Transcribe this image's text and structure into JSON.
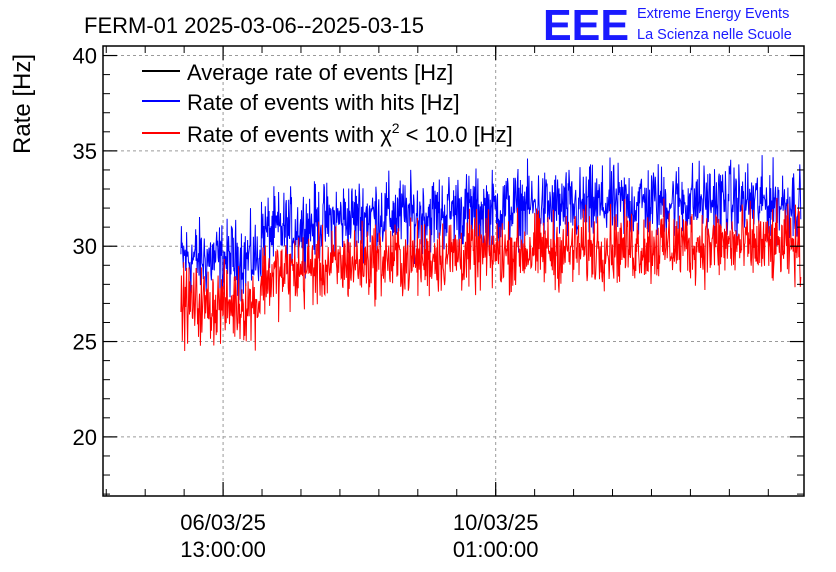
{
  "header": {
    "title": "FERM-01 2025-03-06--2025-03-15",
    "logo_text": "EEE",
    "logo_line1": "Extreme Energy Events",
    "logo_line2": "La Scienza nelle Scuole"
  },
  "chart_data": {
    "type": "line",
    "title": "FERM-01 2025-03-06--2025-03-15",
    "xlabel": "",
    "ylabel": "Rate [Hz]",
    "ylim": [
      16.9,
      40.5
    ],
    "xlim": [
      "2025-03-05T00:00:00",
      "2025-03-14T00:00:00"
    ],
    "yticks": [
      20,
      25,
      30,
      35,
      40
    ],
    "xticks": [
      {
        "x": "2025-03-06T13:00:00",
        "line1": "06/03/25",
        "line2": "13:00:00"
      },
      {
        "x": "2025-03-10T01:00:00",
        "line1": "10/03/25",
        "line2": "01:00:00"
      }
    ],
    "grid": true,
    "legend_position": "top-left",
    "legend": [
      {
        "label": "Average rate of events [Hz]",
        "color": "#000000"
      },
      {
        "label": "Rate of events with hits [Hz]",
        "color": "#0000ff"
      },
      {
        "label_prefix": "Rate of events with χ",
        "label_sup": "2",
        "label_suffix": " < 10.0 [Hz]",
        "color": "#ff0000"
      }
    ],
    "series": [
      {
        "name": "Rate of events with hits [Hz]",
        "color": "#0000ff",
        "x": [
          "2025-03-06T00:00:00",
          "2025-03-06T12:00:00",
          "2025-03-07T00:00:00",
          "2025-03-07T01:00:00",
          "2025-03-07T12:00:00",
          "2025-03-08T00:00:00",
          "2025-03-08T12:00:00",
          "2025-03-09T00:00:00",
          "2025-03-09T12:00:00",
          "2025-03-10T00:00:00",
          "2025-03-10T12:00:00",
          "2025-03-11T00:00:00",
          "2025-03-11T12:00:00",
          "2025-03-12T00:00:00",
          "2025-03-12T12:00:00",
          "2025-03-13T00:00:00",
          "2025-03-13T12:00:00",
          "2025-03-13T23:00:00"
        ],
        "mean": [
          29.4,
          29.3,
          29.4,
          30.7,
          31.0,
          31.4,
          31.7,
          31.6,
          31.9,
          31.9,
          32.1,
          32.0,
          32.2,
          32.3,
          32.4,
          32.4,
          32.3,
          32.3
        ],
        "spread": 1.5
      },
      {
        "name": "Rate of events with χ² < 10.0 [Hz]",
        "color": "#ff0000",
        "x": [
          "2025-03-06T00:00:00",
          "2025-03-06T12:00:00",
          "2025-03-07T00:00:00",
          "2025-03-07T01:00:00",
          "2025-03-07T12:00:00",
          "2025-03-08T00:00:00",
          "2025-03-08T12:00:00",
          "2025-03-09T00:00:00",
          "2025-03-09T12:00:00",
          "2025-03-10T00:00:00",
          "2025-03-10T12:00:00",
          "2025-03-11T00:00:00",
          "2025-03-11T12:00:00",
          "2025-03-12T00:00:00",
          "2025-03-12T12:00:00",
          "2025-03-13T00:00:00",
          "2025-03-13T12:00:00",
          "2025-03-13T23:00:00"
        ],
        "mean": [
          27.0,
          26.9,
          27.0,
          28.3,
          28.7,
          29.0,
          29.3,
          29.3,
          29.6,
          29.6,
          29.8,
          29.8,
          30.0,
          30.0,
          30.1,
          30.1,
          30.0,
          30.0
        ],
        "spread": 1.5
      }
    ]
  }
}
